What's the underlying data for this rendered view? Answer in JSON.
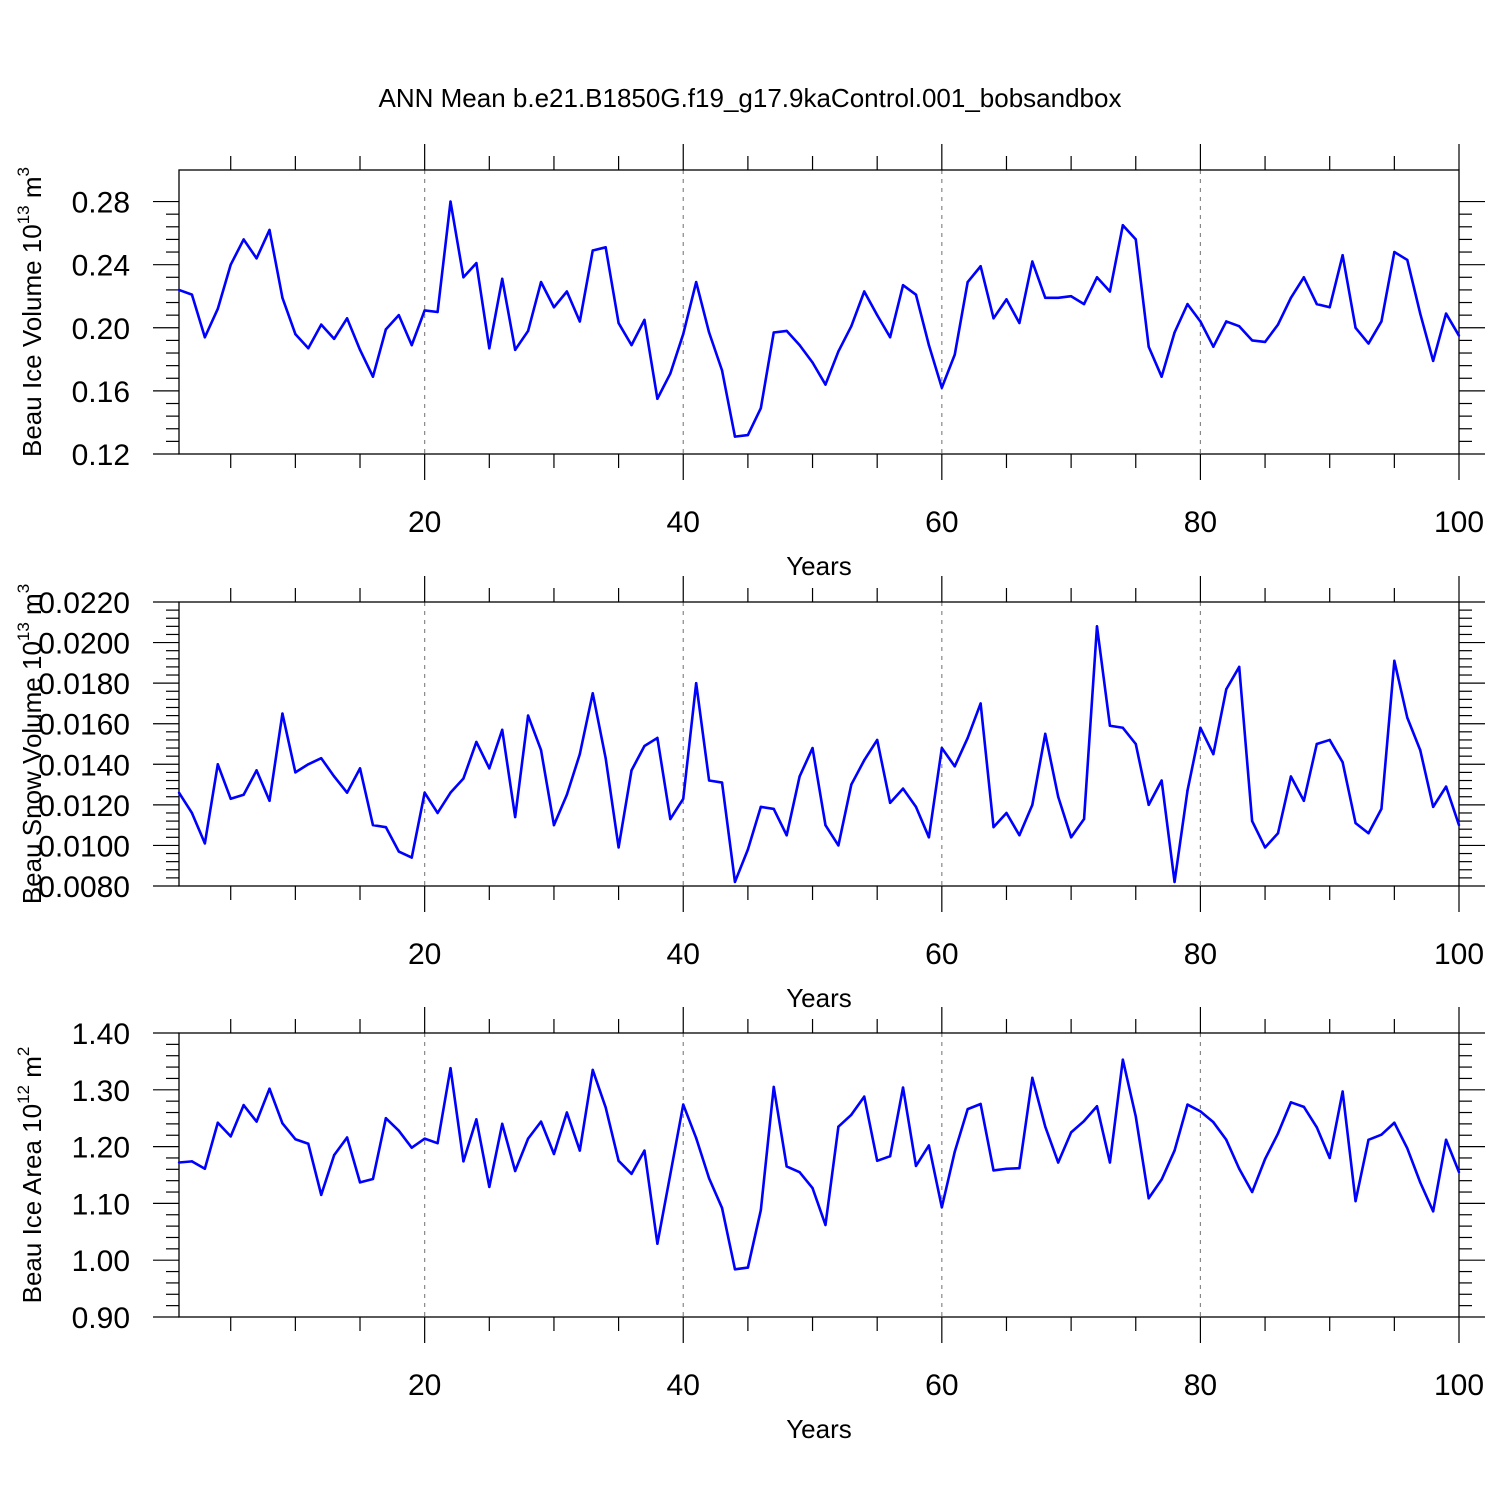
{
  "title": "ANN Mean b.e21.B1850G.f19_g17.9kaControl.001_bobsandbox",
  "colors": {
    "series": "#0000ff",
    "grid": "#888888",
    "axes": "#000000"
  },
  "chart_data": [
    {
      "type": "line",
      "xlabel": "Years",
      "ylabel": "Beau Ice Volume 10",
      "ylabel_exp": "13",
      "ylabel_unit": " m",
      "ylabel_unit_exp": "3",
      "xlim": [
        1,
        100
      ],
      "ylim": [
        0.12,
        0.3
      ],
      "xticks": [
        "20",
        "40",
        "60",
        "80",
        "100"
      ],
      "yticks": [
        "0.12",
        "0.16",
        "0.20",
        "0.24",
        "0.28"
      ],
      "ytick_values": [
        0.12,
        0.16,
        0.2,
        0.24,
        0.28
      ],
      "grid": "x-major-dashed",
      "series": [
        {
          "values": [
            0.224,
            0.221,
            0.194,
            0.212,
            0.24,
            0.256,
            0.244,
            0.262,
            0.219,
            0.196,
            0.187,
            0.202,
            0.193,
            0.206,
            0.186,
            0.169,
            0.199,
            0.208,
            0.189,
            0.211,
            0.21,
            0.28,
            0.232,
            0.241,
            0.187,
            0.231,
            0.186,
            0.198,
            0.229,
            0.213,
            0.223,
            0.204,
            0.249,
            0.251,
            0.203,
            0.189,
            0.205,
            0.155,
            0.171,
            0.196,
            0.229,
            0.197,
            0.173,
            0.131,
            0.132,
            0.149,
            0.197,
            0.198,
            0.189,
            0.178,
            0.164,
            0.185,
            0.201,
            0.223,
            0.208,
            0.194,
            0.227,
            0.221,
            0.189,
            0.162,
            0.183,
            0.229,
            0.239,
            0.206,
            0.218,
            0.203,
            0.242,
            0.219,
            0.219,
            0.22,
            0.215,
            0.232,
            0.223,
            0.265,
            0.256,
            0.188,
            0.169,
            0.197,
            0.215,
            0.204,
            0.188,
            0.204,
            0.201,
            0.192,
            0.191,
            0.202,
            0.219,
            0.232,
            0.215,
            0.213,
            0.246,
            0.2,
            0.19,
            0.204,
            0.248,
            0.243,
            0.209,
            0.179,
            0.209,
            0.195
          ]
        }
      ]
    },
    {
      "type": "line",
      "xlabel": "Years",
      "ylabel": "Beau Snow Volume 10",
      "ylabel_exp": "13",
      "ylabel_unit": " m",
      "ylabel_unit_exp": "3",
      "xlim": [
        1,
        100
      ],
      "ylim": [
        0.008,
        0.022
      ],
      "xticks": [
        "20",
        "40",
        "60",
        "80",
        "100"
      ],
      "yticks": [
        "0.0080",
        "0.0100",
        "0.0120",
        "0.0140",
        "0.0160",
        "0.0180",
        "0.0200",
        "0.0220"
      ],
      "ytick_values": [
        0.008,
        0.01,
        0.012,
        0.014,
        0.016,
        0.018,
        0.02,
        0.022
      ],
      "grid": "x-major-dashed",
      "series": [
        {
          "values": [
            0.0126,
            0.0116,
            0.0101,
            0.014,
            0.0123,
            0.0125,
            0.0137,
            0.0122,
            0.0165,
            0.0136,
            0.014,
            0.0143,
            0.0134,
            0.0126,
            0.0138,
            0.011,
            0.0109,
            0.0097,
            0.0094,
            0.0126,
            0.0116,
            0.0126,
            0.0133,
            0.0151,
            0.0138,
            0.0157,
            0.0114,
            0.0164,
            0.0147,
            0.011,
            0.0125,
            0.0145,
            0.0175,
            0.0143,
            0.0099,
            0.0137,
            0.0149,
            0.0153,
            0.0113,
            0.0123,
            0.018,
            0.0132,
            0.0131,
            0.0082,
            0.0098,
            0.0119,
            0.0118,
            0.0105,
            0.0134,
            0.0148,
            0.011,
            0.01,
            0.013,
            0.0142,
            0.0152,
            0.0121,
            0.0128,
            0.0119,
            0.0104,
            0.0148,
            0.0139,
            0.0153,
            0.017,
            0.0109,
            0.0116,
            0.0105,
            0.012,
            0.0155,
            0.0124,
            0.0104,
            0.0113,
            0.0208,
            0.0159,
            0.0158,
            0.015,
            0.012,
            0.0132,
            0.0082,
            0.0127,
            0.0158,
            0.0145,
            0.0177,
            0.0188,
            0.0112,
            0.0099,
            0.0106,
            0.0134,
            0.0122,
            0.015,
            0.0152,
            0.0141,
            0.0111,
            0.0106,
            0.0118,
            0.0191,
            0.0163,
            0.0147,
            0.0119,
            0.0129,
            0.011
          ]
        }
      ]
    },
    {
      "type": "line",
      "xlabel": "Years",
      "ylabel": "Beau Ice Area 10",
      "ylabel_exp": "12",
      "ylabel_unit": " m",
      "ylabel_unit_exp": "2",
      "xlim": [
        1,
        100
      ],
      "ylim": [
        0.9,
        1.4
      ],
      "xticks": [
        "20",
        "40",
        "60",
        "80",
        "100"
      ],
      "yticks": [
        "0.90",
        "1.00",
        "1.10",
        "1.20",
        "1.30",
        "1.40"
      ],
      "ytick_values": [
        0.9,
        1.0,
        1.1,
        1.2,
        1.3,
        1.4
      ],
      "grid": "x-major-dashed",
      "series": [
        {
          "values": [
            1.172,
            1.174,
            1.161,
            1.242,
            1.218,
            1.273,
            1.244,
            1.302,
            1.241,
            1.213,
            1.205,
            1.115,
            1.185,
            1.216,
            1.137,
            1.143,
            1.25,
            1.228,
            1.198,
            1.214,
            1.206,
            1.338,
            1.174,
            1.248,
            1.129,
            1.24,
            1.157,
            1.214,
            1.244,
            1.187,
            1.26,
            1.193,
            1.335,
            1.269,
            1.175,
            1.152,
            1.193,
            1.029,
            1.151,
            1.274,
            1.215,
            1.144,
            1.092,
            0.984,
            0.987,
            1.088,
            1.305,
            1.165,
            1.155,
            1.127,
            1.062,
            1.235,
            1.256,
            1.288,
            1.175,
            1.183,
            1.304,
            1.166,
            1.202,
            1.093,
            1.191,
            1.266,
            1.275,
            1.158,
            1.161,
            1.162,
            1.321,
            1.235,
            1.172,
            1.225,
            1.245,
            1.271,
            1.172,
            1.353,
            1.253,
            1.109,
            1.142,
            1.193,
            1.274,
            1.262,
            1.243,
            1.212,
            1.161,
            1.12,
            1.178,
            1.223,
            1.278,
            1.27,
            1.234,
            1.18,
            1.297,
            1.104,
            1.212,
            1.221,
            1.242,
            1.197,
            1.137,
            1.086,
            1.212,
            1.155
          ]
        }
      ]
    }
  ]
}
